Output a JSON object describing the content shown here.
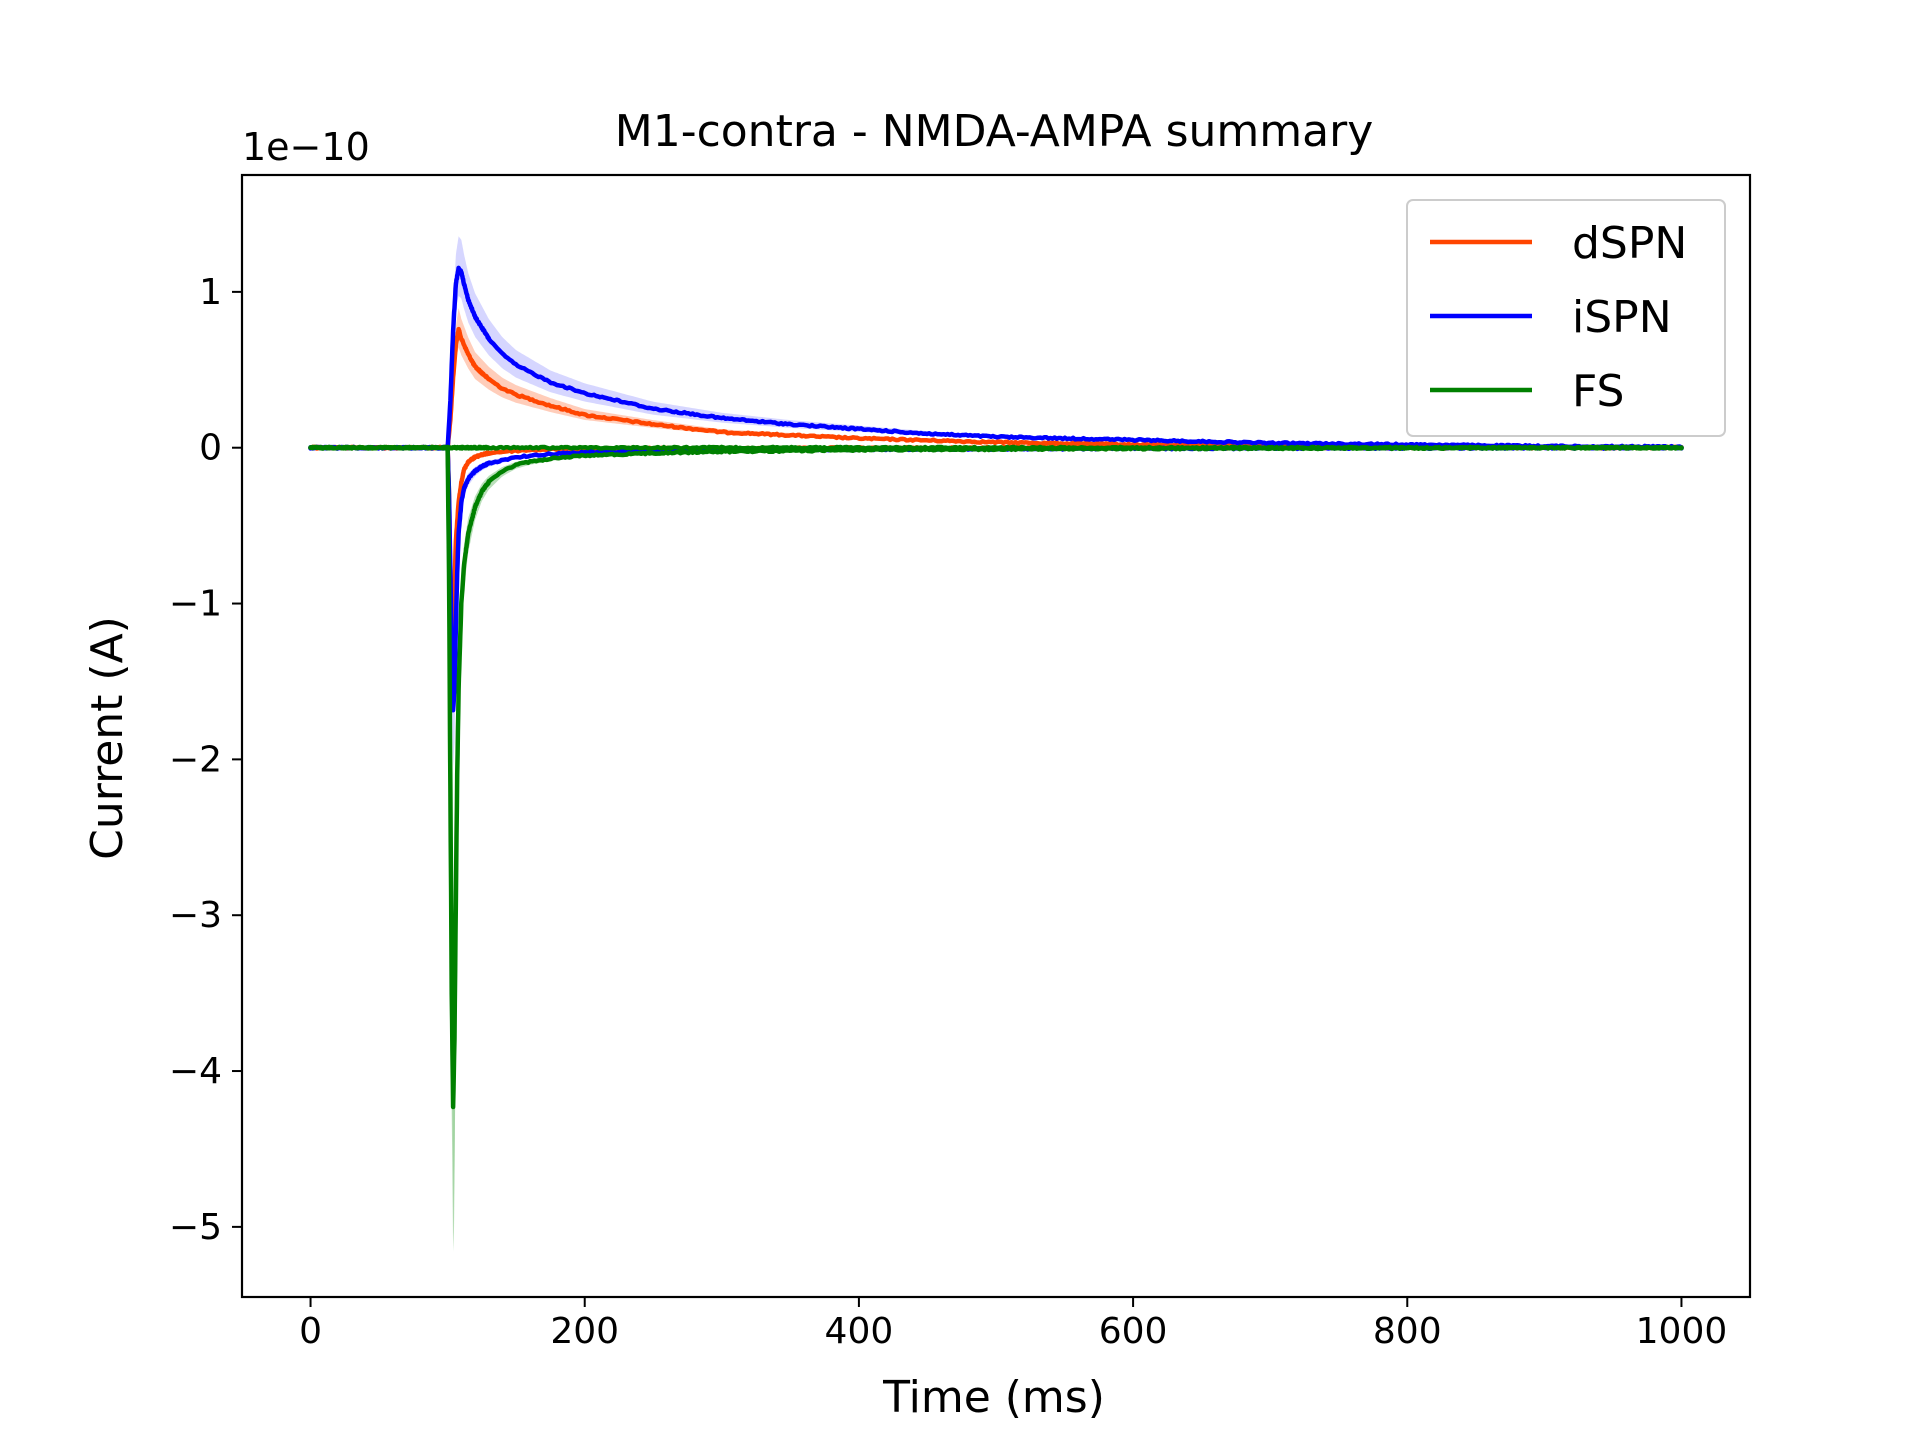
{
  "chart_data": {
    "type": "line",
    "title": "M1-contra - NMDA-AMPA summary",
    "xlabel": "Time (ms)",
    "ylabel": "Current (A)",
    "y_offset_label": "1e−10",
    "y_scale": 1e-10,
    "xlim": [
      -50,
      1050
    ],
    "ylim": [
      -5.45,
      1.75
    ],
    "x_ticks": [
      0,
      200,
      400,
      600,
      800,
      1000
    ],
    "x_tick_labels": [
      "0",
      "200",
      "400",
      "600",
      "800",
      "1000"
    ],
    "y_ticks": [
      1,
      0,
      -1,
      -2,
      -3,
      -4,
      -5
    ],
    "y_tick_labels": [
      "1",
      "0",
      "−1",
      "−2",
      "−3",
      "−4",
      "−5"
    ],
    "grid": false,
    "legend_position": "top-right",
    "series": [
      {
        "name": "dSPN",
        "color": "#FF4500",
        "band_color": "#FFB89C",
        "upper": {
          "x": [
            0,
            100,
            102,
            104,
            106,
            108,
            110,
            115,
            120,
            130,
            140,
            150,
            175,
            200,
            250,
            300,
            350,
            400,
            500,
            600,
            700,
            800,
            900,
            1000
          ],
          "y": [
            0,
            0,
            0.18,
            0.45,
            0.66,
            0.76,
            0.7,
            0.6,
            0.52,
            0.44,
            0.38,
            0.34,
            0.27,
            0.21,
            0.15,
            0.1,
            0.08,
            0.06,
            0.035,
            0.02,
            0.012,
            0.006,
            0.003,
            0.0
          ]
        },
        "lower": {
          "x": [
            0,
            100,
            101,
            102,
            103,
            104,
            105,
            106,
            108,
            110,
            112,
            115,
            120,
            125,
            130,
            140,
            150,
            160,
            175,
            200,
            250,
            300,
            400,
            500,
            600,
            700,
            800,
            900,
            1000
          ],
          "y": [
            0,
            0,
            -0.3,
            -0.9,
            -1.35,
            -1.2,
            -0.9,
            -0.6,
            -0.35,
            -0.22,
            -0.14,
            -0.09,
            -0.06,
            -0.045,
            -0.035,
            -0.025,
            -0.02,
            -0.015,
            -0.01,
            -0.008,
            -0.005,
            -0.004,
            -0.002,
            -0.001,
            0,
            0,
            0,
            0,
            0
          ]
        }
      },
      {
        "name": "iSPN",
        "color": "#0000FF",
        "band_color": "#C4C4FF",
        "upper": {
          "x": [
            0,
            100,
            102,
            104,
            106,
            108,
            110,
            112,
            115,
            120,
            130,
            140,
            150,
            175,
            200,
            250,
            300,
            350,
            400,
            450,
            500,
            600,
            700,
            800,
            900,
            1000
          ],
          "y": [
            0,
            0,
            0.3,
            0.75,
            1.05,
            1.15,
            1.13,
            1.05,
            0.95,
            0.84,
            0.7,
            0.6,
            0.53,
            0.42,
            0.35,
            0.25,
            0.19,
            0.15,
            0.12,
            0.09,
            0.07,
            0.05,
            0.03,
            0.02,
            0.01,
            0.005
          ]
        },
        "lower": {
          "x": [
            0,
            100,
            101,
            102,
            103,
            104,
            105,
            106,
            107,
            108,
            110,
            112,
            115,
            120,
            125,
            130,
            140,
            150,
            175,
            200,
            300,
            400,
            500,
            600,
            700,
            800,
            900,
            1000
          ],
          "y": [
            0,
            0,
            -0.3,
            -0.8,
            -1.3,
            -1.68,
            -1.55,
            -1.15,
            -0.8,
            -0.55,
            -0.35,
            -0.26,
            -0.2,
            -0.15,
            -0.12,
            -0.1,
            -0.08,
            -0.06,
            -0.04,
            -0.03,
            -0.015,
            -0.01,
            -0.008,
            -0.005,
            -0.003,
            -0.002,
            -0.001,
            0
          ]
        }
      },
      {
        "name": "FS",
        "color": "#008000",
        "band_color": "#9CD19C",
        "upper": {
          "x": [
            0,
            100,
            1000
          ],
          "y": [
            0,
            0,
            0
          ]
        },
        "lower": {
          "x": [
            0,
            100,
            101,
            102,
            103,
            104,
            105,
            106,
            107,
            108,
            110,
            112,
            115,
            120,
            125,
            130,
            140,
            150,
            160,
            175,
            200,
            250,
            300,
            400,
            500,
            600,
            700,
            800,
            900,
            1000
          ],
          "y": [
            0,
            0,
            -0.8,
            -2.2,
            -3.5,
            -4.23,
            -3.8,
            -2.9,
            -2.1,
            -1.55,
            -1.0,
            -0.75,
            -0.55,
            -0.38,
            -0.28,
            -0.22,
            -0.15,
            -0.11,
            -0.09,
            -0.07,
            -0.05,
            -0.035,
            -0.025,
            -0.015,
            -0.01,
            -0.006,
            -0.004,
            -0.002,
            -0.001,
            0
          ]
        }
      }
    ]
  }
}
